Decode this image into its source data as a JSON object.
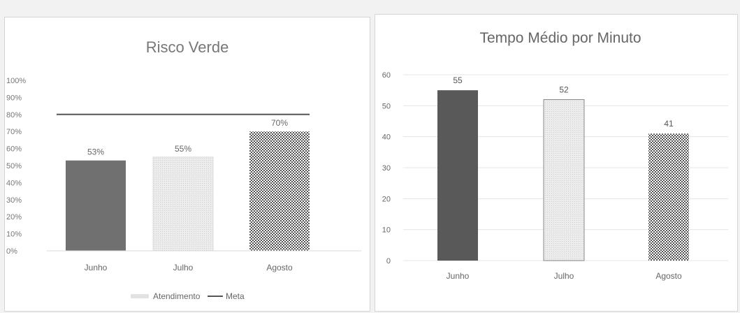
{
  "chart_data": [
    {
      "type": "bar",
      "title": "Risco Verde",
      "categories": [
        "Junho",
        "Julho",
        "Agosto"
      ],
      "yticks": [
        "0%",
        "10%",
        "20%",
        "30%",
        "40%",
        "50%",
        "60%",
        "70%",
        "80%",
        "90%",
        "100%"
      ],
      "ylim": [
        0,
        100
      ],
      "series": [
        {
          "name": "Atendimento",
          "values": [
            53,
            55,
            70
          ],
          "labels": [
            "53%",
            "55%",
            "70%"
          ]
        },
        {
          "name": "Meta",
          "type": "line",
          "values": [
            80,
            80,
            80
          ]
        }
      ],
      "legend": "bottom",
      "grid": false,
      "colors": [
        "#6f6f6f",
        "#e6e6e6",
        "#8a8a8a"
      ]
    },
    {
      "type": "bar",
      "title": "Tempo Médio por Minuto",
      "categories": [
        "Junho",
        "Julho",
        "Agosto"
      ],
      "yticks": [
        "0",
        "10",
        "20",
        "30",
        "40",
        "50",
        "60"
      ],
      "ylim": [
        0,
        60
      ],
      "series": [
        {
          "values": [
            55,
            52,
            41
          ],
          "labels": [
            "55",
            "52",
            "41"
          ]
        }
      ],
      "legend": "none",
      "grid": true,
      "colors": [
        "#5a5a5a",
        "#e3e3e3",
        "#8c8c8c"
      ]
    }
  ]
}
